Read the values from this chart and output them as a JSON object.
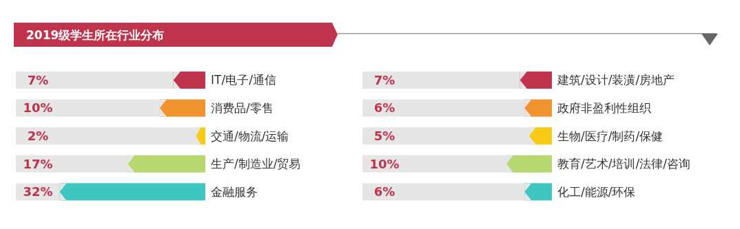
{
  "chart_data": [
    {
      "type": "bar",
      "orientation": "horizontal",
      "title": "2019级学生所在行业分布",
      "categories": [
        "IT/电子/通信",
        "消费品/零售",
        "交通/物流/运输",
        "生产/制造业/贸易",
        "金融服务"
      ],
      "values": [
        7,
        10,
        2,
        17,
        32
      ],
      "value_labels": [
        "7%",
        "10%",
        "2%",
        "17%",
        "32%"
      ],
      "colors": [
        "#c0334d",
        "#f0922e",
        "#f7cb15",
        "#b6d86e",
        "#3fc6c1"
      ]
    },
    {
      "type": "bar",
      "orientation": "horizontal",
      "categories": [
        "建筑/设计/装潢/房地产",
        "政府非盈利性组织",
        "生物/医疗/制药/保健",
        "教育/艺术/培训/法律/咨询",
        "化工/能源/环保"
      ],
      "values": [
        7,
        6,
        5,
        10,
        6
      ],
      "value_labels": [
        "7%",
        "6%",
        "5%",
        "10%",
        "6%"
      ],
      "colors": [
        "#c0334d",
        "#f0922e",
        "#f7cb15",
        "#b6d86e",
        "#3fc6c1"
      ]
    }
  ]
}
